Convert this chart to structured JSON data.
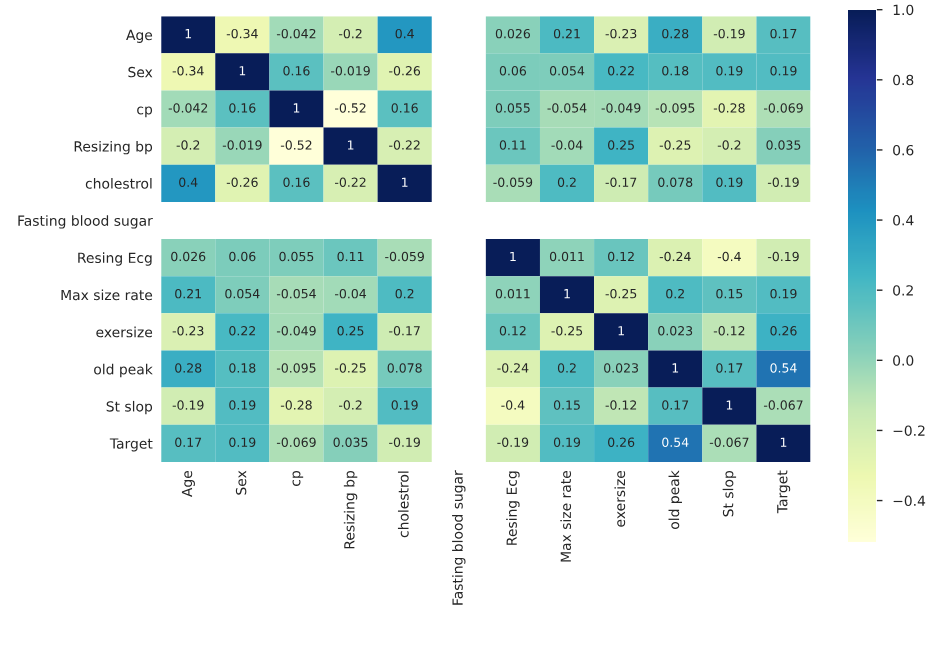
{
  "chart_data": {
    "type": "heatmap",
    "categories": [
      "Age",
      "Sex",
      "cp",
      "Resizing bp",
      "cholestrol",
      "Fasting blood sugar",
      "Resing Ecg",
      "Max size rate",
      "exersize",
      "old peak",
      "St slop",
      "Target"
    ],
    "y_categories": [
      "Age",
      "Sex",
      "cp",
      "Resizing bp",
      "cholestrol",
      "Fasting blood sugar",
      "Resing Ecg",
      "Max size rate",
      "exersize",
      "old peak",
      "St slop",
      "Target"
    ],
    "cells": [
      [
        1,
        -0.34,
        -0.042,
        -0.2,
        0.4,
        null,
        0.026,
        0.21,
        -0.23,
        0.28,
        -0.19,
        0.17
      ],
      [
        -0.34,
        1,
        0.16,
        -0.019,
        -0.26,
        null,
        0.06,
        0.054,
        0.22,
        0.18,
        0.19,
        0.19
      ],
      [
        -0.042,
        0.16,
        1,
        -0.52,
        0.16,
        null,
        0.055,
        -0.054,
        -0.049,
        -0.095,
        -0.28,
        -0.069
      ],
      [
        -0.2,
        -0.019,
        -0.52,
        1,
        -0.22,
        null,
        0.11,
        -0.04,
        0.25,
        -0.25,
        -0.2,
        0.035
      ],
      [
        0.4,
        -0.26,
        0.16,
        -0.22,
        1,
        null,
        -0.059,
        0.2,
        -0.17,
        0.078,
        0.19,
        -0.19
      ],
      [
        null,
        null,
        null,
        null,
        null,
        null,
        null,
        null,
        null,
        null,
        null,
        null
      ],
      [
        0.026,
        0.06,
        0.055,
        0.11,
        -0.059,
        null,
        1,
        0.011,
        0.12,
        -0.24,
        -0.4,
        -0.19
      ],
      [
        0.21,
        0.054,
        -0.054,
        -0.04,
        0.2,
        null,
        0.011,
        1,
        -0.25,
        0.2,
        0.15,
        0.19
      ],
      [
        -0.23,
        0.22,
        -0.049,
        0.25,
        -0.17,
        null,
        0.12,
        -0.25,
        1,
        0.023,
        -0.12,
        0.26
      ],
      [
        0.28,
        0.18,
        -0.095,
        -0.25,
        0.078,
        null,
        -0.24,
        0.2,
        0.023,
        1,
        0.17,
        0.54
      ],
      [
        -0.19,
        0.19,
        -0.28,
        -0.2,
        0.19,
        null,
        -0.4,
        0.15,
        -0.12,
        0.17,
        1,
        -0.067
      ],
      [
        0.17,
        0.19,
        -0.069,
        0.035,
        -0.19,
        null,
        -0.19,
        0.19,
        0.26,
        0.54,
        -0.067,
        1
      ]
    ],
    "data_labels": true,
    "clim": [
      -0.52,
      1
    ],
    "cticks": [
      {
        "value": -0.4,
        "label": "−0.4"
      },
      {
        "value": -0.2,
        "label": "−0.2"
      },
      {
        "value": 0.0,
        "label": "0.0"
      },
      {
        "value": 0.2,
        "label": "0.2"
      },
      {
        "value": 0.4,
        "label": "0.4"
      },
      {
        "value": 0.6,
        "label": "0.6"
      },
      {
        "value": 0.8,
        "label": "0.8"
      },
      {
        "value": 1.0,
        "label": "1.0"
      }
    ]
  }
}
